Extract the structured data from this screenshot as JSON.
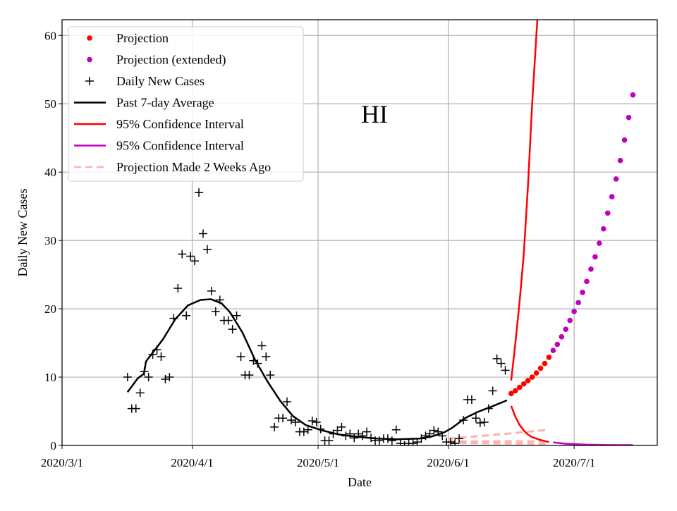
{
  "chart_data": {
    "type": "line",
    "title": "HI",
    "xlabel": "Date",
    "ylabel": "Daily New Cases",
    "x_unit": "days since 2020/3/1",
    "xlim": [
      0,
      141.8
    ],
    "ylim": [
      0,
      62.3
    ],
    "grid": true,
    "x_ticks": [
      {
        "day": 0,
        "label": "2020/3/1"
      },
      {
        "day": 31,
        "label": "2020/4/1"
      },
      {
        "day": 61,
        "label": "2020/5/1"
      },
      {
        "day": 92,
        "label": "2020/6/1"
      },
      {
        "day": 122,
        "label": "2020/7/1"
      }
    ],
    "y_ticks": [
      0,
      10,
      20,
      30,
      40,
      50,
      60
    ],
    "legend_position": "top-left",
    "legend": [
      {
        "label": "Projection",
        "kind": "dot",
        "color": "#ff0000"
      },
      {
        "label": "Projection (extended)",
        "kind": "dot",
        "color": "#bf00bf"
      },
      {
        "label": "Daily New Cases",
        "kind": "plus",
        "color": "#000000"
      },
      {
        "label": "Past 7-day Average",
        "kind": "line",
        "color": "#000000"
      },
      {
        "label": "95% Confidence Interval",
        "kind": "line",
        "color": "#ff0000"
      },
      {
        "label": "95% Confidence Interval",
        "kind": "line",
        "color": "#bf00bf"
      },
      {
        "label": "Projection Made 2 Weeks Ago",
        "kind": "dash",
        "color": "#ffb0b0"
      }
    ],
    "daily_new_cases": {
      "start_day": 15.6,
      "values": [
        10,
        5.4,
        5.4,
        7.7,
        10.8,
        10,
        13.3,
        14,
        13,
        9.7,
        10,
        18.6,
        23,
        28,
        19,
        27.7,
        27,
        37,
        31,
        28.7,
        22.6,
        19.6,
        21.3,
        18.3,
        18.3,
        17,
        19,
        13,
        10.3,
        10.3,
        12.4,
        12,
        14.6,
        13,
        10.3,
        2.7,
        4,
        4,
        6.4,
        3.7,
        3.4,
        2,
        2,
        2.3,
        3.6,
        3.4,
        2.4,
        0.7,
        0.7,
        1.7,
        2.2,
        2.7,
        1.4,
        1.7,
        1.1,
        1.7,
        1.4,
        2,
        1.1,
        0.7,
        0.7,
        1,
        1,
        0.7,
        2.3,
        0.3,
        0,
        0.3,
        0.3,
        0.5,
        1,
        1.4,
        1.7,
        2.2,
        2,
        1.4,
        0.5,
        0.5,
        0.3,
        1,
        3.7,
        6.7,
        6.7,
        4,
        3.3,
        3.4,
        5.4,
        8,
        12.7,
        12,
        11
      ]
    },
    "seven_day_average": [
      [
        15.6,
        7.8
      ],
      [
        18,
        9.8
      ],
      [
        19.5,
        10.5
      ],
      [
        20,
        12.3
      ],
      [
        24,
        15.5
      ],
      [
        27,
        18.5
      ],
      [
        30,
        20.5
      ],
      [
        33,
        21.3
      ],
      [
        35.5,
        21.4
      ],
      [
        38,
        20.8
      ],
      [
        40,
        19.5
      ],
      [
        43,
        16.5
      ],
      [
        46,
        12.5
      ],
      [
        49,
        9.3
      ],
      [
        52,
        6.5
      ],
      [
        55,
        4.3
      ],
      [
        58,
        3.0
      ],
      [
        62,
        2.2
      ],
      [
        66,
        1.6
      ],
      [
        70,
        1.3
      ],
      [
        75,
        1.0
      ],
      [
        80,
        0.9
      ],
      [
        85,
        1.0
      ],
      [
        88,
        1.3
      ],
      [
        91,
        1.9
      ],
      [
        93,
        2.6
      ],
      [
        96,
        4.0
      ],
      [
        99,
        4.9
      ],
      [
        102,
        5.6
      ],
      [
        106,
        6.6
      ]
    ],
    "projection": {
      "start_day": 107,
      "values": [
        7.6,
        8.0,
        8.5,
        9.0,
        9.5,
        10.0,
        10.6,
        11.3,
        12.0,
        12.9
      ]
    },
    "projection_extended": {
      "start_day": 117,
      "values": [
        13.9,
        14.8,
        15.9,
        17,
        18.3,
        19.6,
        20.9,
        22.4,
        24,
        25.8,
        27.6,
        29.6,
        31.7,
        34,
        36.4,
        39,
        41.7,
        44.7,
        48,
        51.3
      ]
    },
    "ci_upper_red": [
      [
        107,
        9.5
      ],
      [
        108,
        15
      ],
      [
        109,
        21
      ],
      [
        110,
        28
      ],
      [
        111,
        38
      ],
      [
        112,
        50
      ],
      [
        113.3,
        63
      ]
    ],
    "ci_lower_red": [
      [
        107,
        5.8
      ],
      [
        108,
        4.2
      ],
      [
        109,
        3
      ],
      [
        110,
        2.2
      ],
      [
        111,
        1.6
      ],
      [
        112,
        1.2
      ],
      [
        114,
        0.8
      ],
      [
        116,
        0.5
      ]
    ],
    "ci_lower_purple": [
      [
        117,
        0.45
      ],
      [
        120,
        0.25
      ],
      [
        125,
        0.12
      ],
      [
        130,
        0.07
      ],
      [
        136,
        0.05
      ]
    ],
    "projection_2_weeks_ago": [
      [
        [
          92,
          1.0
        ],
        [
          104,
          1.6
        ],
        [
          116,
          2.3
        ]
      ],
      [
        [
          92,
          0.6
        ],
        [
          104,
          0.6
        ],
        [
          116,
          0.6
        ]
      ],
      [
        [
          92,
          0.4
        ],
        [
          104,
          0.3
        ],
        [
          116,
          0.25
        ]
      ]
    ]
  }
}
